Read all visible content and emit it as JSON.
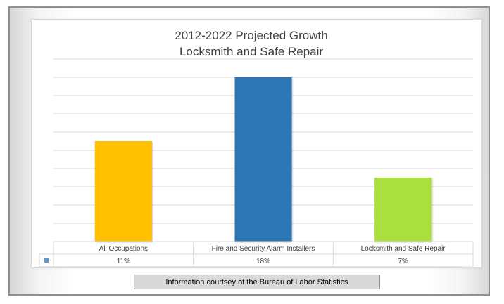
{
  "chart_data": {
    "type": "bar",
    "title_line1": "2012-2022 Projected Growth",
    "title_line2": "Locksmith and Safe Repair",
    "categories": [
      "All Occupations",
      "Fire and Security Alarm Installers",
      "Locksmith and Safe Repair"
    ],
    "values": [
      11,
      18,
      7
    ],
    "value_labels": [
      "11%",
      "18%",
      "7%"
    ],
    "bar_colors": [
      "#FFC000",
      "#2E75B6",
      "#A9E03D"
    ],
    "legend_color": "#5B9BD5",
    "ylim": [
      0,
      18
    ],
    "grid": true,
    "data_table": true
  },
  "footer": {
    "text": "Information courtsey of the Bureau of Labor Statistics"
  }
}
